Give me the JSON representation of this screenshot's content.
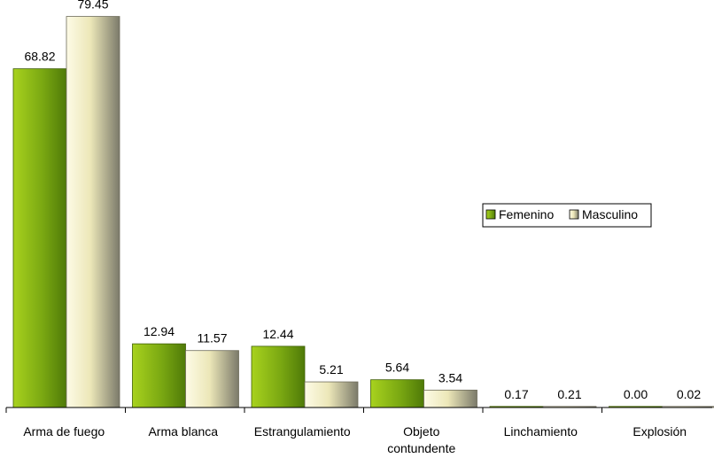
{
  "chart_data": {
    "type": "bar",
    "categories": [
      [
        "Arma de fuego"
      ],
      [
        "Arma blanca"
      ],
      [
        "Estrangulamiento"
      ],
      [
        "Objeto",
        "contundente"
      ],
      [
        "Linchamiento"
      ],
      [
        "Explosión"
      ]
    ],
    "series": [
      {
        "name": "Femenino",
        "values": [
          68.82,
          12.94,
          12.44,
          5.64,
          0.17,
          0.0
        ],
        "labels": [
          "68.82",
          "12.94",
          "12.44",
          "5.64",
          "0.17",
          "0.00"
        ],
        "color": "#7aa812",
        "color_dark": "#5a8a0c",
        "color_light": "#a8d21e"
      },
      {
        "name": "Masculino",
        "values": [
          79.45,
          11.57,
          5.21,
          3.54,
          0.21,
          0.02
        ],
        "labels": [
          "79.45",
          "11.57",
          "5.21",
          "3.54",
          "0.21",
          "0.02"
        ],
        "color": "#f2eec2",
        "color_dark": "#8a886e",
        "color_light": "#fbf9df"
      }
    ],
    "ylim": [
      0,
      80
    ],
    "grid": false,
    "legend": {
      "position": "right",
      "items": [
        "Femenino",
        "Masculino"
      ]
    }
  }
}
